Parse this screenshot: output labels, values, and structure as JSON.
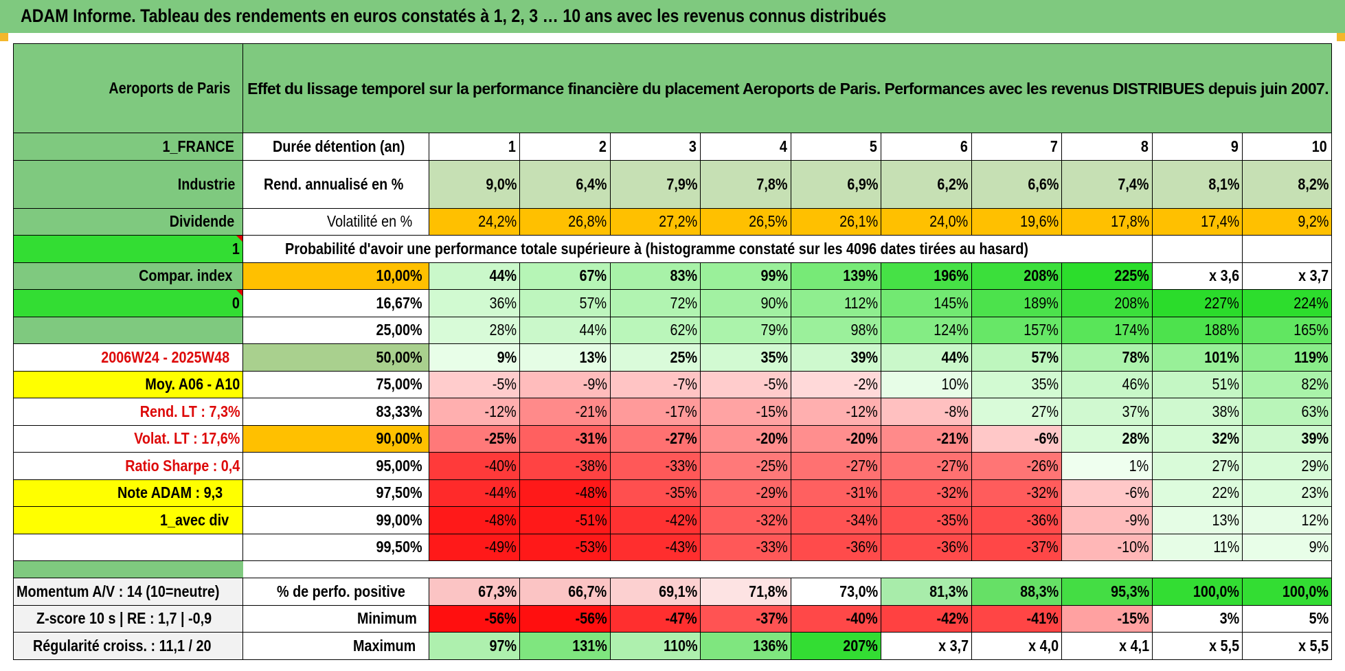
{
  "title": "ADAM Informe. Tableau des rendements en euros constatés à 1, 2, 3 … 10 ans avec les revenus connus distribués",
  "colors": {
    "green_header": "#7fc97f",
    "bright_green": "#33dd33",
    "orange": "#ffc000",
    "yellow": "#ffff00",
    "red_text": "#dd0a0a"
  },
  "header": {
    "company": "Aeroports de Paris",
    "description": "Effet du lissage temporel sur la performance financière du placement Aeroports de Paris. Performances avec les revenus DISTRIBUES depuis juin 2007."
  },
  "side": {
    "country": "1_FRANCE",
    "sector": "Industrie",
    "type": "Dividende",
    "flag1": "1",
    "compar": "Compar. index",
    "flag0": "0",
    "period": "2006W24 - 2025W48",
    "moy": "Moy. A06 - A10",
    "rend_lt": "Rend. LT :    7,3%",
    "volat_lt": "Volat. LT :    17,6%",
    "sharpe": "Ratio Sharpe :     0,4",
    "note": "Note ADAM : 9,3",
    "avec_div": "1_avec div",
    "momentum": "Momentum A/V : 14 (10=neutre)",
    "zscore": "Z-score 10 s | RE : 1,7 | -0,9",
    "regularite": "Régularité croiss. : 11,1 / 20"
  },
  "rows": {
    "duree": {
      "label": "Durée détention (an)",
      "years": [
        "1",
        "2",
        "3",
        "4",
        "5",
        "6",
        "7",
        "8",
        "9",
        "10"
      ]
    },
    "rend": {
      "label": "Rend. annualisé en %",
      "values": [
        "9,0%",
        "6,4%",
        "7,9%",
        "7,8%",
        "6,9%",
        "6,2%",
        "6,6%",
        "7,4%",
        "8,1%",
        "8,2%"
      ]
    },
    "vol": {
      "label": "Volatilité en %",
      "values": [
        "24,2%",
        "26,8%",
        "27,2%",
        "26,5%",
        "26,1%",
        "24,0%",
        "19,6%",
        "17,8%",
        "17,4%",
        "9,2%"
      ]
    },
    "prob_title": "Probabilité d'avoir une performance totale supérieure à (histogramme constaté sur les 4096 dates tirées au hasard)",
    "probs": [
      {
        "pct": "10,00%",
        "values": [
          "44%",
          "67%",
          "83%",
          "99%",
          "139%",
          "196%",
          "208%",
          "225%",
          "x 3,6",
          "x 3,7"
        ]
      },
      {
        "pct": "16,67%",
        "values": [
          "36%",
          "57%",
          "72%",
          "90%",
          "112%",
          "145%",
          "189%",
          "208%",
          "227%",
          "224%"
        ]
      },
      {
        "pct": "25,00%",
        "values": [
          "28%",
          "44%",
          "62%",
          "79%",
          "98%",
          "124%",
          "157%",
          "174%",
          "188%",
          "165%"
        ]
      },
      {
        "pct": "50,00%",
        "values": [
          "9%",
          "13%",
          "25%",
          "35%",
          "39%",
          "44%",
          "57%",
          "78%",
          "101%",
          "119%"
        ]
      },
      {
        "pct": "75,00%",
        "values": [
          "-5%",
          "-9%",
          "-7%",
          "-5%",
          "-2%",
          "10%",
          "35%",
          "46%",
          "51%",
          "82%"
        ]
      },
      {
        "pct": "83,33%",
        "values": [
          "-12%",
          "-21%",
          "-17%",
          "-15%",
          "-12%",
          "-8%",
          "27%",
          "37%",
          "38%",
          "63%"
        ]
      },
      {
        "pct": "90,00%",
        "values": [
          "-25%",
          "-31%",
          "-27%",
          "-20%",
          "-20%",
          "-21%",
          "-6%",
          "28%",
          "32%",
          "39%"
        ]
      },
      {
        "pct": "95,00%",
        "values": [
          "-40%",
          "-38%",
          "-33%",
          "-25%",
          "-27%",
          "-27%",
          "-26%",
          "1%",
          "27%",
          "29%"
        ]
      },
      {
        "pct": "97,50%",
        "values": [
          "-44%",
          "-48%",
          "-35%",
          "-29%",
          "-31%",
          "-32%",
          "-32%",
          "-6%",
          "22%",
          "23%"
        ]
      },
      {
        "pct": "99,00%",
        "values": [
          "-48%",
          "-51%",
          "-42%",
          "-32%",
          "-34%",
          "-35%",
          "-36%",
          "-9%",
          "13%",
          "12%"
        ]
      },
      {
        "pct": "99,50%",
        "values": [
          "-49%",
          "-53%",
          "-43%",
          "-33%",
          "-36%",
          "-36%",
          "-37%",
          "-10%",
          "11%",
          "9%"
        ]
      }
    ],
    "positive": {
      "label": "% de perfo. positive",
      "values": [
        "67,3%",
        "66,7%",
        "69,1%",
        "71,8%",
        "73,0%",
        "81,3%",
        "88,3%",
        "95,3%",
        "100,0%",
        "100,0%"
      ]
    },
    "minimum": {
      "label": "Minimum",
      "values": [
        "-56%",
        "-56%",
        "-47%",
        "-37%",
        "-40%",
        "-42%",
        "-41%",
        "-15%",
        "3%",
        "5%"
      ]
    },
    "maximum": {
      "label": "Maximum",
      "values": [
        "97%",
        "131%",
        "110%",
        "136%",
        "207%",
        "x 3,7",
        "x 4,0",
        "x 4,1",
        "x 5,5",
        "x 5,5"
      ]
    }
  }
}
